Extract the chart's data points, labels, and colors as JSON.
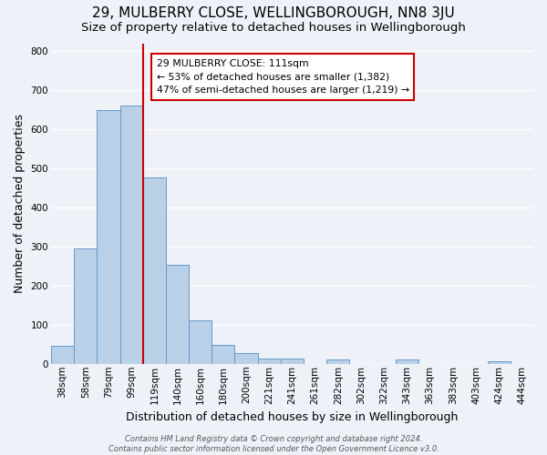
{
  "title": "29, MULBERRY CLOSE, WELLINGBOROUGH, NN8 3JU",
  "subtitle": "Size of property relative to detached houses in Wellingborough",
  "xlabel": "Distribution of detached houses by size in Wellingborough",
  "ylabel": "Number of detached properties",
  "categories": [
    "38sqm",
    "58sqm",
    "79sqm",
    "99sqm",
    "119sqm",
    "140sqm",
    "160sqm",
    "180sqm",
    "200sqm",
    "221sqm",
    "241sqm",
    "261sqm",
    "282sqm",
    "302sqm",
    "322sqm",
    "343sqm",
    "363sqm",
    "383sqm",
    "403sqm",
    "424sqm",
    "444sqm"
  ],
  "values": [
    48,
    295,
    648,
    660,
    478,
    253,
    113,
    49,
    28,
    14,
    14,
    0,
    13,
    0,
    0,
    12,
    0,
    0,
    0,
    7,
    0
  ],
  "bar_color": "#b8d0e8",
  "bar_edge_color": "#6699cc",
  "vline_between": [
    3,
    4
  ],
  "vline_color": "#cc0000",
  "annotation_text": "29 MULBERRY CLOSE: 111sqm\n← 53% of detached houses are smaller (1,382)\n47% of semi-detached houses are larger (1,219) →",
  "annotation_box_color": "#ffffff",
  "annotation_box_edge": "#cc0000",
  "ylim": [
    0,
    820
  ],
  "yticks": [
    0,
    100,
    200,
    300,
    400,
    500,
    600,
    700,
    800
  ],
  "footer_text": "Contains HM Land Registry data © Crown copyright and database right 2024.\nContains public sector information licensed under the Open Government Licence v3.0.",
  "bg_color": "#eef2f8",
  "grid_color": "#ffffff",
  "title_fontsize": 11,
  "subtitle_fontsize": 9.5,
  "axis_label_fontsize": 9,
  "tick_fontsize": 7.5,
  "footer_fontsize": 6.0
}
